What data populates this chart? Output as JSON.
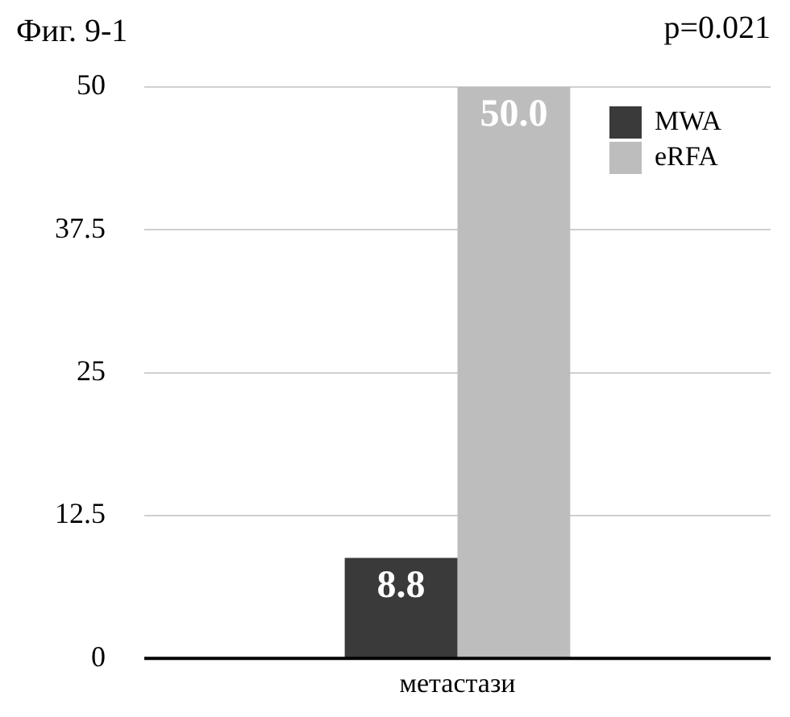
{
  "chart_data": {
    "type": "bar",
    "title": "Фиг. 9-1",
    "annotations": [
      "p=0.021"
    ],
    "categories": [
      "метастази"
    ],
    "series": [
      {
        "name": "MWA",
        "color": "#3a3a3a",
        "values": [
          8.8
        ],
        "value_labels": [
          "8.8"
        ]
      },
      {
        "name": "eRFA",
        "color": "#bdbdbd",
        "values": [
          50.0
        ],
        "value_labels": [
          "50.0"
        ]
      }
    ],
    "ylim": [
      0,
      50
    ],
    "yticks": [
      0,
      12.5,
      25,
      37.5,
      50
    ],
    "grid": "y",
    "legend": "top right"
  }
}
